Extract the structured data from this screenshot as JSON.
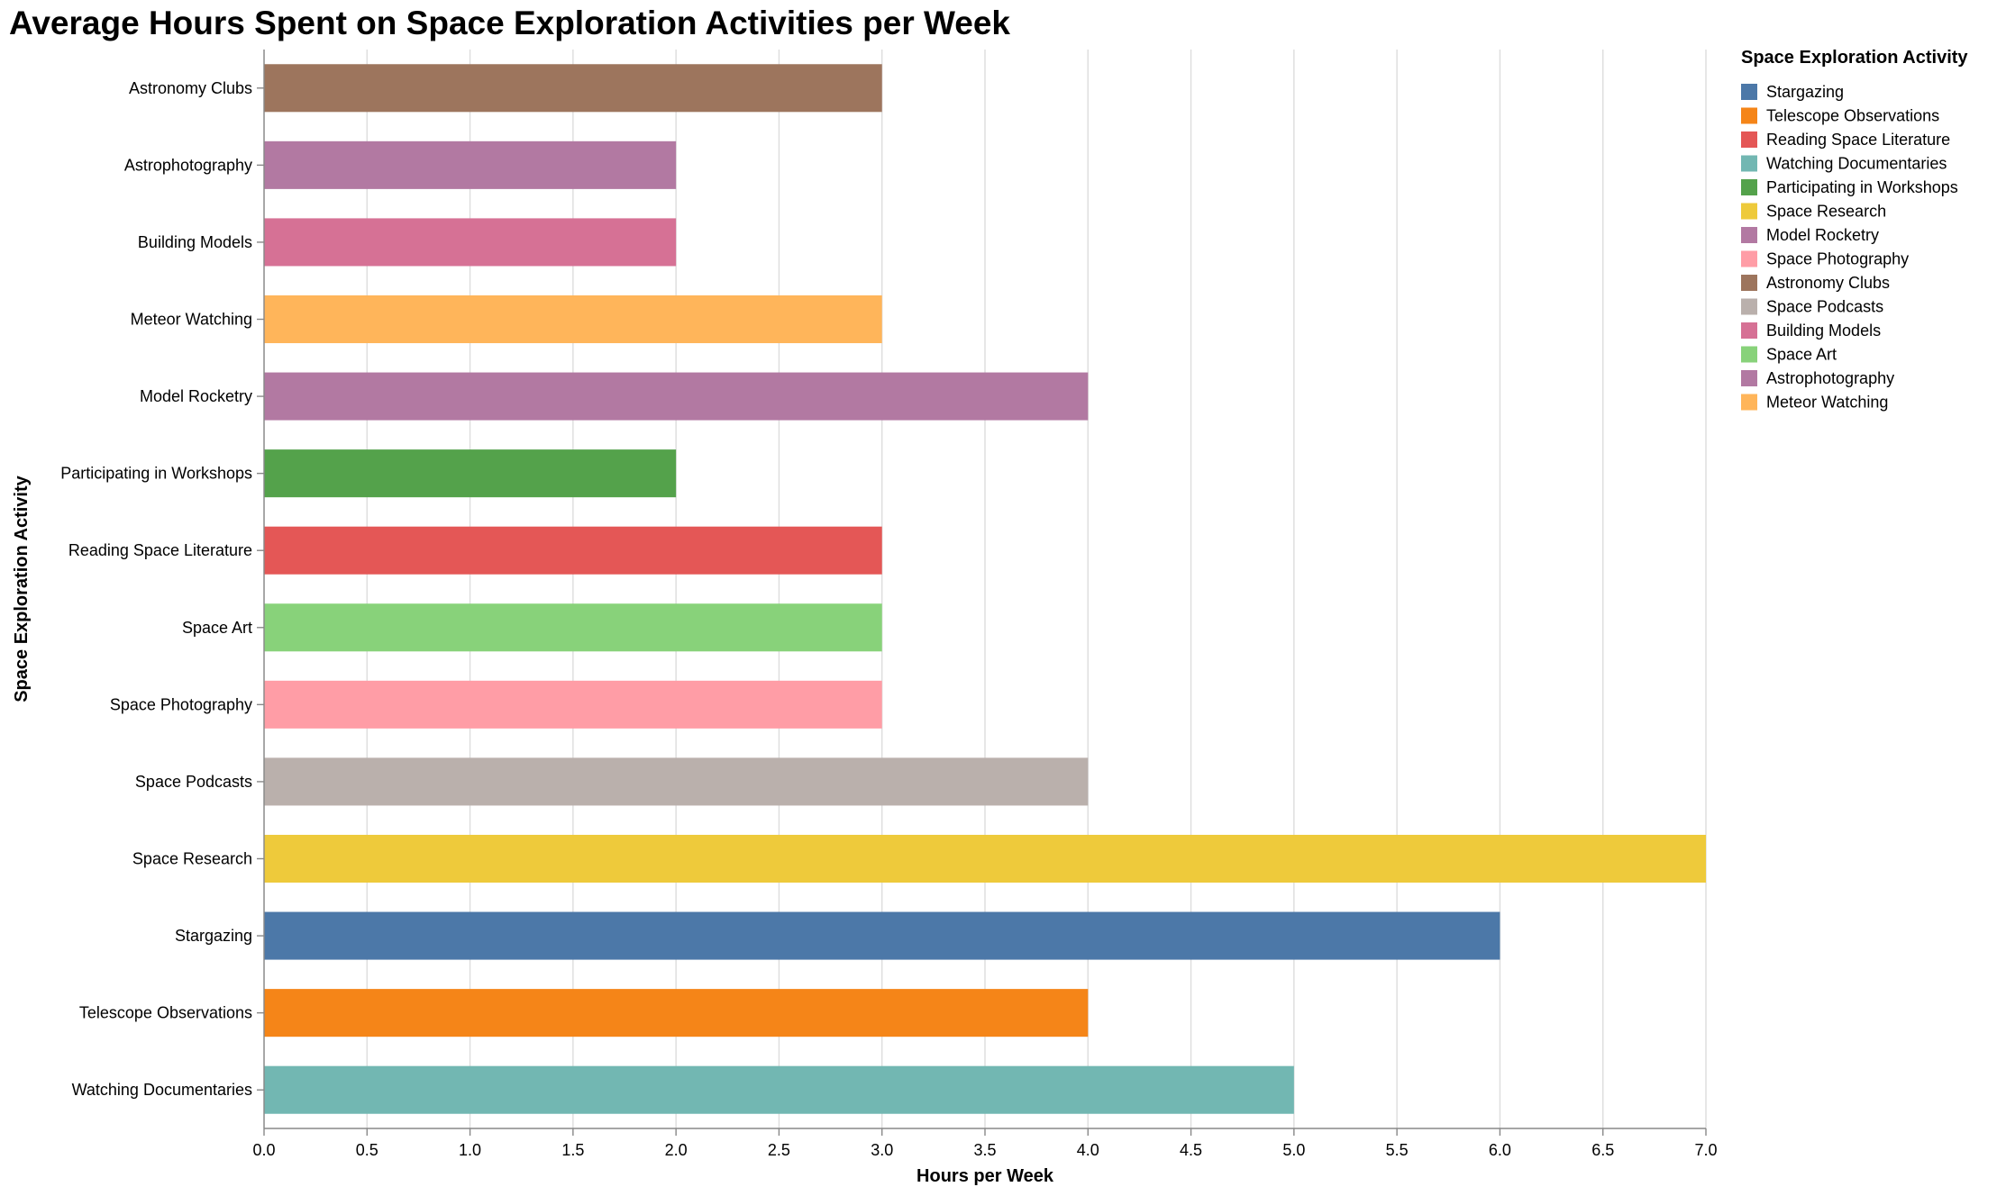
{
  "chart_data": {
    "type": "bar",
    "orientation": "horizontal",
    "title": "Average Hours Spent on Space Exploration Activities per Week",
    "xlabel": "Hours per Week",
    "ylabel": "Space Exploration Activity",
    "xlim": [
      0,
      7
    ],
    "x_ticks": [
      "0.0",
      "0.5",
      "1.0",
      "1.5",
      "2.0",
      "2.5",
      "3.0",
      "3.5",
      "4.0",
      "4.5",
      "5.0",
      "5.5",
      "6.0",
      "6.5",
      "7.0"
    ],
    "grid": "vertical",
    "categories": [
      "Astronomy Clubs",
      "Astrophotography",
      "Building Models",
      "Meteor Watching",
      "Model Rocketry",
      "Participating in Workshops",
      "Reading Space Literature",
      "Space Art",
      "Space Photography",
      "Space Podcasts",
      "Space Research",
      "Stargazing",
      "Telescope Observations",
      "Watching Documentaries"
    ],
    "values": [
      3,
      2,
      2,
      3,
      4,
      2,
      3,
      3,
      3,
      4,
      7,
      6,
      4,
      5
    ],
    "colors": {
      "Stargazing": "#4c78a8",
      "Telescope Observations": "#f58518",
      "Reading Space Literature": "#e45756",
      "Watching Documentaries": "#72b7b2",
      "Participating in Workshops": "#54a24b",
      "Space Research": "#eeca3b",
      "Model Rocketry": "#b279a2",
      "Space Photography": "#ff9da6",
      "Astronomy Clubs": "#9d755d",
      "Space Podcasts": "#bab0ac",
      "Building Models": "#d67195",
      "Space Art": "#88d27a",
      "Astrophotography": "#b279a2",
      "Meteor Watching": "#ffb55a"
    },
    "legend": {
      "title": "Space Exploration Activity",
      "placement": "right",
      "entries": [
        "Stargazing",
        "Telescope Observations",
        "Reading Space Literature",
        "Watching Documentaries",
        "Participating in Workshops",
        "Space Research",
        "Model Rocketry",
        "Space Photography",
        "Astronomy Clubs",
        "Space Podcasts",
        "Building Models",
        "Space Art",
        "Astrophotography",
        "Meteor Watching"
      ]
    }
  }
}
